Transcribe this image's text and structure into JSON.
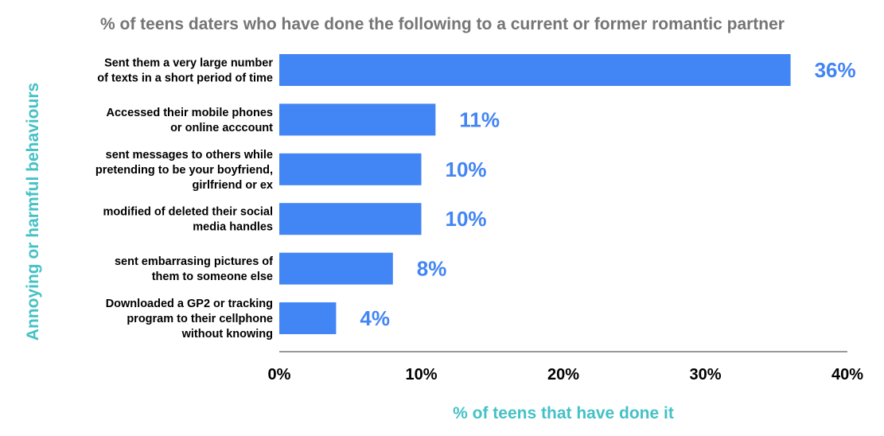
{
  "chart_data": {
    "type": "bar",
    "orientation": "horizontal",
    "title": "% of teens daters who have done the following to a current or former romantic partner",
    "xlabel": "% of teens that have done it",
    "ylabel": "Annoying or harmful behaviours",
    "categories": [
      [
        "Sent them a very large number",
        "of texts in a short period of time"
      ],
      [
        "Accessed their mobile phones",
        "or online acccount"
      ],
      [
        "sent messages to others while",
        "pretending to be your boyfriend,",
        "girlfriend or ex"
      ],
      [
        "modified of deleted their social",
        "media handles"
      ],
      [
        "sent embarrasing pictures of",
        "them to someone else"
      ],
      [
        "Downloaded a GP2 or tracking",
        "program to their cellphone",
        "without knowing"
      ]
    ],
    "values": [
      36,
      11,
      10,
      10,
      8,
      4
    ],
    "data_labels": [
      "36%",
      "11%",
      "10%",
      "10%",
      "8%",
      "4%"
    ],
    "xlim": [
      0,
      40
    ],
    "xticks": [
      0,
      10,
      20,
      30,
      40
    ],
    "xtick_labels": [
      "0%",
      "10%",
      "20%",
      "30%",
      "40%"
    ],
    "grid": false,
    "legend": "none",
    "colors": {
      "bar": "#4285f4",
      "data_label": "#4285f4",
      "axis_title": "#45c1c6",
      "title": "#757575",
      "axis_line": "#333333"
    }
  }
}
